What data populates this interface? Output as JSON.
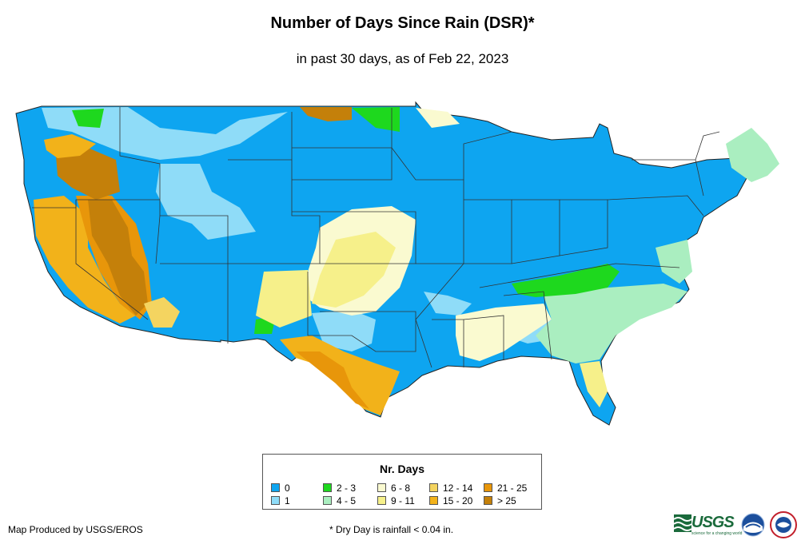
{
  "header": {
    "title": "Number of Days Since Rain (DSR)*",
    "subtitle": "in past 30 days, as of Feb 22, 2023"
  },
  "legend": {
    "title": "Nr. Days",
    "items": [
      {
        "label": "0",
        "color": "#0ea5f0"
      },
      {
        "label": "1",
        "color": "#8fdcf8"
      },
      {
        "label": "2 - 3",
        "color": "#1ed81e"
      },
      {
        "label": "4 - 5",
        "color": "#aaeec0"
      },
      {
        "label": "6 - 8",
        "color": "#fafad0"
      },
      {
        "label": "9 - 11",
        "color": "#f6f08a"
      },
      {
        "label": "12 - 14",
        "color": "#f4d460"
      },
      {
        "label": "15 - 20",
        "color": "#f2b21a"
      },
      {
        "label": "21 - 25",
        "color": "#e8960a"
      },
      {
        "label": "> 25",
        "color": "#c4800a"
      }
    ]
  },
  "footer": {
    "credit": "Map Produced by USGS/EROS",
    "note": "* Dry Day is rainfall < 0.04 in."
  },
  "logos": {
    "usgs": "USGS",
    "usgs_tagline": "science for a changing world",
    "noaa": "NOAA",
    "nws": "NWS"
  }
}
